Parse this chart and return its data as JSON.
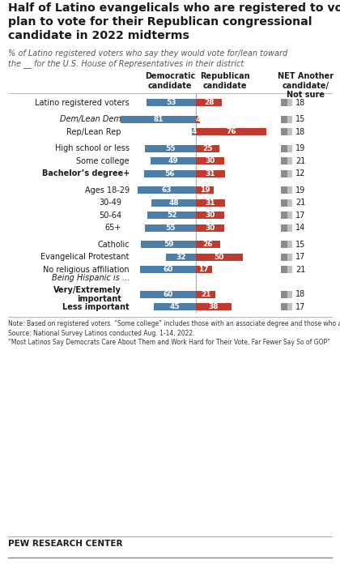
{
  "title": "Half of Latino evangelicals who are registered to vote\nplan to vote for their Republican congressional\ncandidate in 2022 midterms",
  "subtitle": "% of Latino registered voters who say they would vote for/lean toward\nthe __ for the U.S. House of Representatives in their district",
  "col_header_dem": "Democratic\ncandidate",
  "col_header_rep": "Republican\ncandidate",
  "col_header_net": "NET Another\ncandidate/\nNot sure",
  "rows": [
    {
      "label": "Latino registered voters",
      "dem": 53,
      "rep": 28,
      "net": 18,
      "indent": 0,
      "bold": false,
      "italic": false,
      "section_above": null
    },
    {
      "label": "Dem/Lean Dem",
      "dem": 81,
      "rep": 4,
      "net": 15,
      "indent": 1,
      "bold": false,
      "italic": true,
      "section_above": ""
    },
    {
      "label": "Rep/Lean Rep",
      "dem": 4,
      "rep": 76,
      "net": 18,
      "indent": 1,
      "bold": false,
      "italic": false,
      "section_above": null
    },
    {
      "label": "High school or less",
      "dem": 55,
      "rep": 25,
      "net": 19,
      "indent": 0,
      "bold": false,
      "italic": false,
      "section_above": ""
    },
    {
      "label": "Some college",
      "dem": 49,
      "rep": 30,
      "net": 21,
      "indent": 0,
      "bold": false,
      "italic": false,
      "section_above": null
    },
    {
      "label": "Bachelor’s degree+",
      "dem": 56,
      "rep": 31,
      "net": 12,
      "indent": 0,
      "bold": true,
      "italic": false,
      "section_above": null
    },
    {
      "label": "Ages 18-29",
      "dem": 63,
      "rep": 19,
      "net": 19,
      "indent": 0,
      "bold": false,
      "italic": false,
      "section_above": ""
    },
    {
      "label": "30-49",
      "dem": 48,
      "rep": 31,
      "net": 21,
      "indent": 1,
      "bold": false,
      "italic": false,
      "section_above": null
    },
    {
      "label": "50-64",
      "dem": 52,
      "rep": 30,
      "net": 17,
      "indent": 1,
      "bold": false,
      "italic": false,
      "section_above": null
    },
    {
      "label": "65+",
      "dem": 55,
      "rep": 30,
      "net": 14,
      "indent": 1,
      "bold": false,
      "italic": false,
      "section_above": null
    },
    {
      "label": "Catholic",
      "dem": 59,
      "rep": 26,
      "net": 15,
      "indent": 0,
      "bold": false,
      "italic": false,
      "section_above": ""
    },
    {
      "label": "Evangelical Protestant",
      "dem": 32,
      "rep": 50,
      "net": 17,
      "indent": 0,
      "bold": false,
      "italic": false,
      "section_above": null
    },
    {
      "label": "No religious affiliation",
      "dem": 60,
      "rep": 17,
      "net": 21,
      "indent": 0,
      "bold": false,
      "italic": false,
      "section_above": null
    },
    {
      "label": "Very/Extremely\nimportant",
      "dem": 60,
      "rep": 21,
      "net": 18,
      "indent": 1,
      "bold": true,
      "italic": false,
      "section_above": "Being Hispanic is ..."
    },
    {
      "label": "Less important",
      "dem": 45,
      "rep": 38,
      "net": 17,
      "indent": 0,
      "bold": true,
      "italic": false,
      "section_above": null
    }
  ],
  "dem_color": "#4d7ea8",
  "rep_color": "#bf3b2f",
  "net_dark": "#8c8c8c",
  "net_light": "#c0c0c0",
  "bg_color": "#ffffff",
  "note_text": "Note: Based on registered voters. “Some college” includes those with an associate degree and those who attended college but did not obtain a degree. “Being Hispanic is less important” includes respondents who say being Hispanic is somewhat, a little, or not at all important to how they think about themselves. Share of respondents who didn’t offer an answer not shown. Figures may not add to 100% due to rounding.\nSource: National Survey Latinos conducted Aug. 1-14, 2022.\n“Most Latinos Say Democrats Care About Them and Work Hard for Their Vote, Far Fewer Say So of GOP”",
  "pew_label": "PEW RESEARCH CENTER"
}
